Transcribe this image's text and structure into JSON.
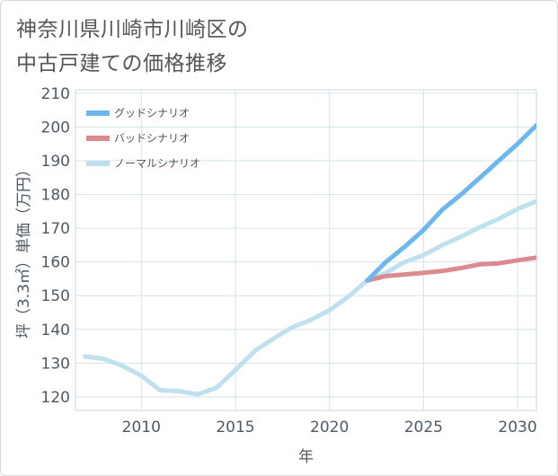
{
  "title": {
    "line1": "神奈川県川崎市川崎区の",
    "line2": "中古戸建ての価格推移"
  },
  "chart_data": {
    "type": "line",
    "xlabel": "年",
    "ylabel": "坪（3.3㎡）単価（万円）",
    "xlim": [
      2006.5,
      2031
    ],
    "ylim": [
      116,
      211
    ],
    "x_ticks": [
      2010,
      2015,
      2020,
      2025,
      2030
    ],
    "y_ticks": [
      120,
      130,
      140,
      150,
      160,
      170,
      180,
      190,
      200,
      210
    ],
    "grid": true,
    "legend_position": "top-left",
    "series": [
      {
        "name": "グッドシナリオ",
        "color": "#6cb8ee",
        "x": [
          2022,
          2023,
          2024,
          2025,
          2026,
          2027,
          2028,
          2029,
          2030,
          2031
        ],
        "y": [
          154.5,
          160.0,
          164.5,
          169.5,
          175.5,
          180.0,
          185.0,
          190.0,
          195.0,
          200.5
        ]
      },
      {
        "name": "バッドシナリオ",
        "color": "#db8a8f",
        "x": [
          2022,
          2023,
          2024,
          2025,
          2026,
          2027,
          2028,
          2029,
          2030,
          2031
        ],
        "y": [
          154.5,
          155.8,
          156.3,
          156.8,
          157.3,
          158.2,
          159.3,
          159.6,
          160.5,
          161.3
        ]
      },
      {
        "name": "ノーマルシナリオ",
        "color": "#bfe0ee",
        "x": [
          2007,
          2008,
          2009,
          2010,
          2011,
          2012,
          2013,
          2014,
          2015,
          2016,
          2017,
          2018,
          2019,
          2020,
          2021,
          2022,
          2023,
          2024,
          2025,
          2026,
          2027,
          2028,
          2029,
          2030,
          2031
        ],
        "y": [
          132.0,
          131.3,
          129.2,
          126.3,
          122.0,
          121.7,
          120.8,
          122.7,
          128.0,
          133.5,
          137.2,
          140.6,
          142.8,
          145.7,
          149.7,
          154.5,
          156.8,
          160.0,
          162.0,
          165.0,
          167.5,
          170.3,
          172.8,
          175.7,
          178.0
        ]
      }
    ]
  }
}
